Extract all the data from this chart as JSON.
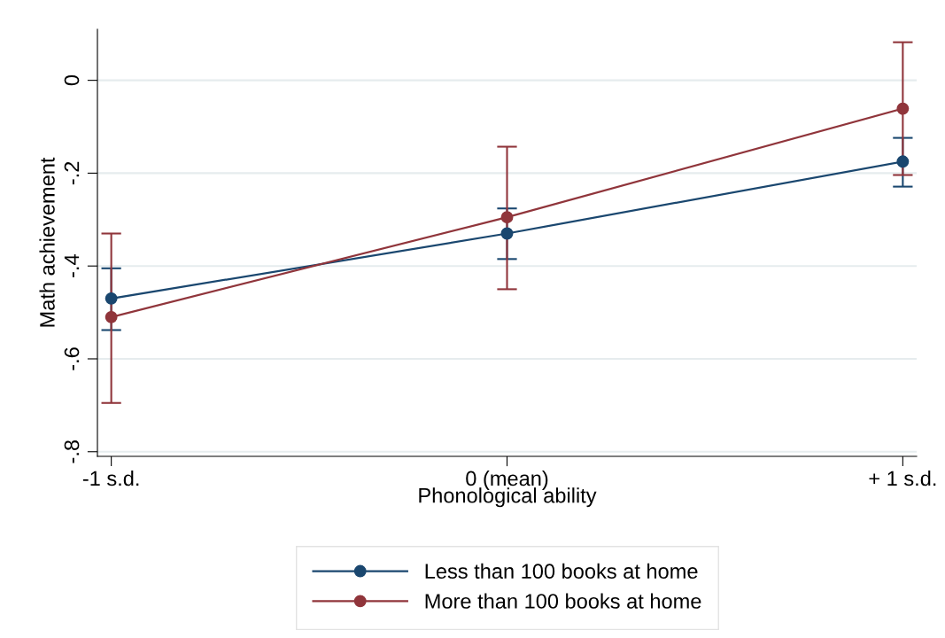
{
  "chart_data": {
    "type": "line",
    "xlabel": "Phonological ability",
    "ylabel": "Math achievement",
    "categories": [
      "-1 s.d.",
      "0 (mean)",
      "+ 1 s.d."
    ],
    "series": [
      {
        "name": "Less than 100 books at home",
        "color": "#1a476f",
        "values": [
          -0.47,
          -0.33,
          -0.175
        ],
        "errors": [
          [
            -0.538,
            -0.405
          ],
          [
            -0.385,
            -0.276
          ],
          [
            -0.229,
            -0.124
          ]
        ]
      },
      {
        "name": "More than 100 books at home",
        "color": "#90353b",
        "values": [
          -0.51,
          -0.295,
          -0.061
        ],
        "errors": [
          [
            -0.695,
            -0.33
          ],
          [
            -0.45,
            -0.143
          ],
          [
            -0.204,
            0.082
          ]
        ]
      }
    ],
    "ylim": [
      -0.81,
      0.11
    ],
    "yticks": [
      {
        "value": -0.8,
        "label": "-.8"
      },
      {
        "value": -0.6,
        "label": "-.6"
      },
      {
        "value": -0.4,
        "label": "-.4"
      },
      {
        "value": -0.2,
        "label": "-.2"
      },
      {
        "value": 0,
        "label": "0"
      }
    ],
    "grid": "y",
    "legend": "bottom",
    "marker": "circle",
    "line_style": "solid"
  }
}
